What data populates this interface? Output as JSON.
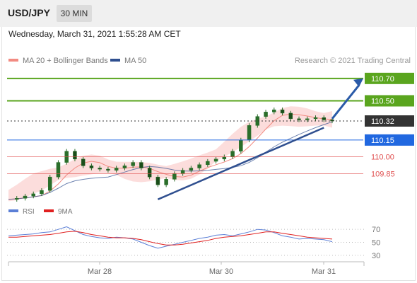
{
  "header": {
    "symbol": "USD/JPY",
    "timeframe": "30 MIN"
  },
  "timestamp": "Wednesday, March 31, 2021 1:55:28 AM CET",
  "legend": {
    "ma20": {
      "label": "MA 20 + Bollinger Bands",
      "color": "#f28b82"
    },
    "ma50": {
      "label": "MA 50",
      "color": "#2f4f8f"
    }
  },
  "credit": "Research © 2021 Trading Central",
  "colors": {
    "resistance": "#5aa51e",
    "current": "#333333",
    "support_blue": "#2168e0",
    "support_red": "#e05050",
    "candle": "#2a6e2a",
    "band": "#fbd5d3",
    "trend": "#2f4f8f",
    "rsi": "#5b7fd6",
    "rsi_ma": "#e02020"
  },
  "chart_data": [
    {
      "type": "candlestick",
      "title": "USD/JPY 30 MIN",
      "xlabel": "",
      "ylabel": "",
      "ylim": [
        109.6,
        110.8
      ],
      "x_ticks": [
        "Mar 28",
        "Mar 30",
        "Mar 31"
      ],
      "price_levels": [
        {
          "value": 110.7,
          "label": "110.70",
          "kind": "resistance"
        },
        {
          "value": 110.5,
          "label": "110.50",
          "kind": "resistance"
        },
        {
          "value": 110.32,
          "label": "110.32",
          "kind": "current"
        },
        {
          "value": 110.15,
          "label": "110.15",
          "kind": "support"
        },
        {
          "value": 110.0,
          "label": "110.00",
          "kind": "support-minor"
        },
        {
          "value": 109.85,
          "label": "109.85",
          "kind": "support-minor"
        }
      ],
      "series": [
        {
          "name": "Price",
          "values": [
            109.62,
            109.63,
            109.65,
            109.67,
            109.7,
            109.82,
            109.95,
            110.05,
            109.98,
            109.92,
            109.9,
            109.89,
            109.88,
            109.9,
            109.92,
            109.95,
            109.9,
            109.82,
            109.75,
            109.8,
            109.85,
            109.88,
            109.9,
            109.93,
            109.96,
            109.98,
            110.0,
            110.05,
            110.15,
            110.28,
            110.36,
            110.4,
            110.42,
            110.39,
            110.34,
            110.33,
            110.34,
            110.35,
            110.33,
            110.32
          ]
        },
        {
          "name": "MA 20",
          "values": []
        },
        {
          "name": "MA 50",
          "values": []
        }
      ]
    },
    {
      "type": "line",
      "title": "RSI",
      "ylim": [
        20,
        80
      ],
      "y_ticks": [
        70,
        50,
        30
      ],
      "series": [
        {
          "name": "RSI",
          "values": [
            60,
            61,
            62,
            63,
            65,
            66,
            70,
            74,
            68,
            62,
            59,
            57,
            56,
            58,
            57,
            55,
            50,
            45,
            41,
            44,
            47,
            50,
            53,
            56,
            58,
            61,
            62,
            60,
            63,
            66,
            70,
            69,
            65,
            60,
            58,
            55,
            56,
            55,
            54,
            51
          ]
        },
        {
          "name": "9MA",
          "values": [
            58,
            58,
            59,
            60,
            61,
            62,
            64,
            66,
            67,
            65,
            62,
            60,
            58,
            57,
            57,
            56,
            54,
            51,
            48,
            46,
            46,
            47,
            49,
            51,
            53,
            56,
            58,
            59,
            60,
            62,
            64,
            66,
            66,
            64,
            62,
            60,
            58,
            57,
            56,
            55
          ]
        }
      ]
    }
  ],
  "rsi_legend": {
    "rsi": "RSI",
    "ma": "9MA"
  }
}
